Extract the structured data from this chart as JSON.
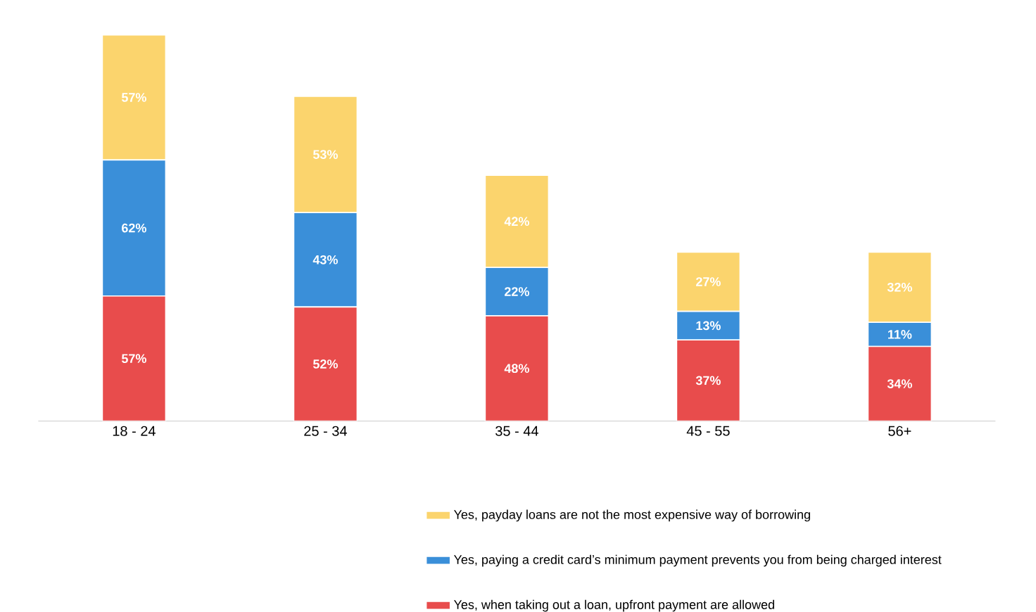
{
  "chart_data": {
    "type": "bar",
    "stacked": true,
    "legend": "bottom",
    "categories": [
      "18 - 24",
      "25 - 34",
      "35 - 44",
      "45 - 55",
      "56+"
    ],
    "series": [
      {
        "name": "Yes, when taking out a loan, upfront payment are allowed",
        "color": "#e84c4c",
        "values": [
          57,
          52,
          48,
          37,
          34
        ],
        "value_labels": [
          "57%",
          "52%",
          "48%",
          "37%",
          "34%"
        ]
      },
      {
        "name": "Yes, paying a credit card’s minimum  payment prevents you from being charged interest",
        "color": "#3a8fd9",
        "values": [
          62,
          43,
          22,
          13,
          11
        ],
        "value_labels": [
          "62%",
          "43%",
          "22%",
          "13%",
          "11%"
        ]
      },
      {
        "name": "Yes, payday loans are not the most expensive way of borrowing",
        "color": "#fbd46d",
        "values": [
          57,
          53,
          42,
          27,
          32
        ],
        "value_labels": [
          "57%",
          "53%",
          "42%",
          "27%",
          "32%"
        ]
      }
    ]
  }
}
